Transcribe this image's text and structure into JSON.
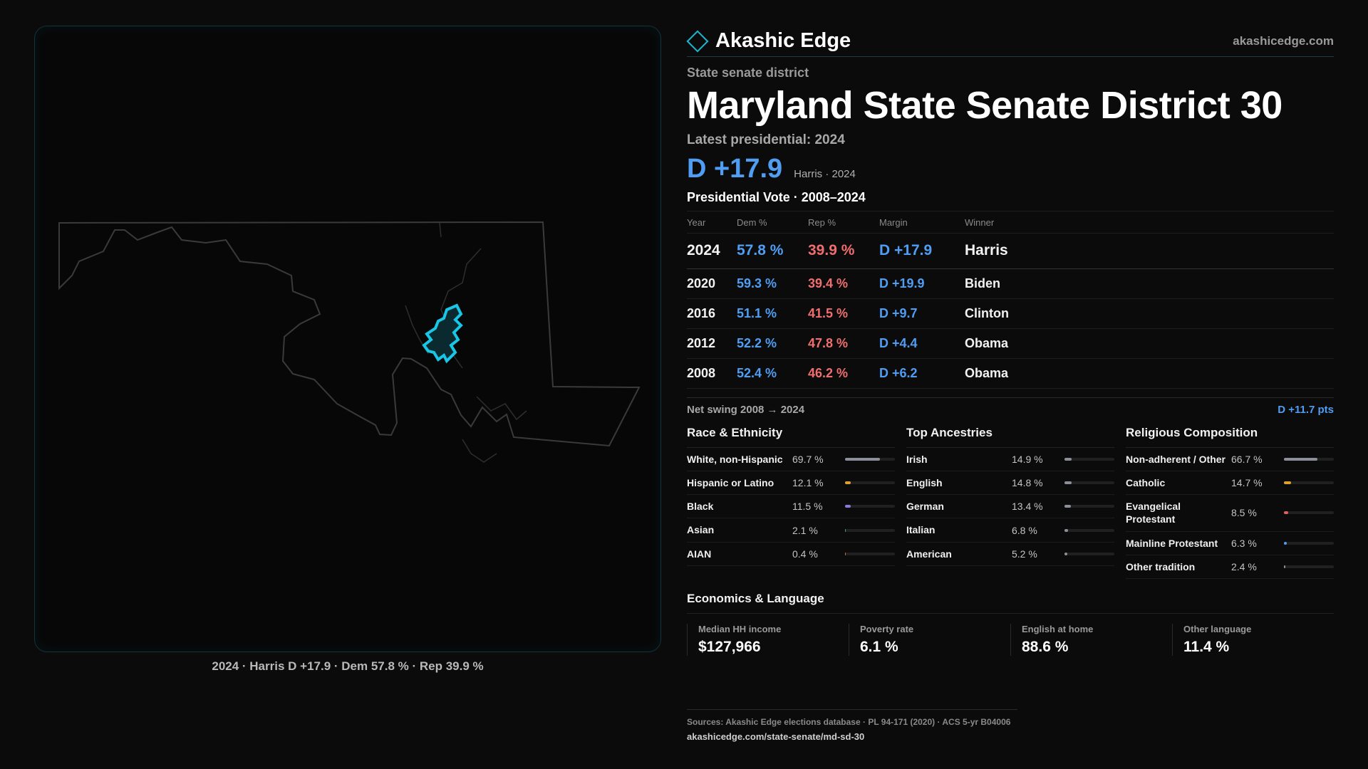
{
  "brand": {
    "name": "Akashic Edge",
    "url": "akashicedge.com"
  },
  "header": {
    "kicker": "State senate district",
    "title": "Maryland State Senate District 30",
    "latest_label": "Latest presidential: 2024",
    "margin": "D +17.9",
    "margin_sub": "Harris · 2024"
  },
  "presidential": {
    "title": "Presidential Vote · 2008–2024",
    "columns": [
      "Year",
      "Dem %",
      "Rep %",
      "Margin",
      "Winner"
    ],
    "rows": [
      {
        "year": "2024",
        "dem": "57.8 %",
        "rep": "39.9 %",
        "margin": "D +17.9",
        "winner": "Harris"
      },
      {
        "year": "2020",
        "dem": "59.3 %",
        "rep": "39.4 %",
        "margin": "D +19.9",
        "winner": "Biden"
      },
      {
        "year": "2016",
        "dem": "51.1 %",
        "rep": "41.5 %",
        "margin": "D +9.7",
        "winner": "Clinton"
      },
      {
        "year": "2012",
        "dem": "52.2 %",
        "rep": "47.8 %",
        "margin": "D +4.4",
        "winner": "Obama"
      },
      {
        "year": "2008",
        "dem": "52.4 %",
        "rep": "46.2 %",
        "margin": "D +6.2",
        "winner": "Obama"
      }
    ],
    "swing_label": "Net swing 2008 → 2024",
    "swing_value": "D +11.7 pts"
  },
  "race": {
    "title": "Race & Ethnicity",
    "rows": [
      {
        "label": "White, non-Hispanic",
        "value": "69.7 %",
        "fraction": 0.697,
        "color": "#8a8f99"
      },
      {
        "label": "Hispanic or Latino",
        "value": "12.1 %",
        "fraction": 0.121,
        "color": "#e0a030"
      },
      {
        "label": "Black",
        "value": "11.5 %",
        "fraction": 0.115,
        "color": "#8a7ad8"
      },
      {
        "label": "Asian",
        "value": "2.1 %",
        "fraction": 0.021,
        "color": "#40a070"
      },
      {
        "label": "AIAN",
        "value": "0.4 %",
        "fraction": 0.004,
        "color": "#c07040"
      }
    ]
  },
  "ancestry": {
    "title": "Top Ancestries",
    "rows": [
      {
        "label": "Irish",
        "value": "14.9 %",
        "fraction": 0.149,
        "color": "#8a8f99"
      },
      {
        "label": "English",
        "value": "14.8 %",
        "fraction": 0.148,
        "color": "#8a8f99"
      },
      {
        "label": "German",
        "value": "13.4 %",
        "fraction": 0.134,
        "color": "#8a8f99"
      },
      {
        "label": "Italian",
        "value": "6.8 %",
        "fraction": 0.068,
        "color": "#8a8f99"
      },
      {
        "label": "American",
        "value": "5.2 %",
        "fraction": 0.052,
        "color": "#8a8f99"
      }
    ]
  },
  "religion": {
    "title": "Religious Composition",
    "rows": [
      {
        "label": "Non-adherent / Other",
        "value": "66.7 %",
        "fraction": 0.667,
        "color": "#8a8f99"
      },
      {
        "label": "Catholic",
        "value": "14.7 %",
        "fraction": 0.147,
        "color": "#e0a030"
      },
      {
        "label": "Evangelical Protestant",
        "value": "8.5 %",
        "fraction": 0.085,
        "color": "#e06060"
      },
      {
        "label": "Mainline Protestant",
        "value": "6.3 %",
        "fraction": 0.063,
        "color": "#4f9ef3"
      },
      {
        "label": "Other tradition",
        "value": "2.4 %",
        "fraction": 0.024,
        "color": "#8a8f99"
      }
    ]
  },
  "economics": {
    "title": "Economics & Language",
    "cells": [
      {
        "label": "Median HH income",
        "value": "$127,966"
      },
      {
        "label": "Poverty rate",
        "value": "6.1 %"
      },
      {
        "label": "English at home",
        "value": "88.6 %"
      },
      {
        "label": "Other language",
        "value": "11.4 %"
      }
    ]
  },
  "map": {
    "caption": "2024 · Harris D +17.9 · Dem 57.8 % · Rep 39.9 %",
    "outline_color": "#3a3a3a",
    "district_color": "#19c6e6"
  },
  "sources": {
    "line": "Sources: Akashic Edge elections database · PL 94-171 (2020) · ACS 5-yr B04006",
    "url": "akashicedge.com/state-senate/md-sd-30"
  }
}
